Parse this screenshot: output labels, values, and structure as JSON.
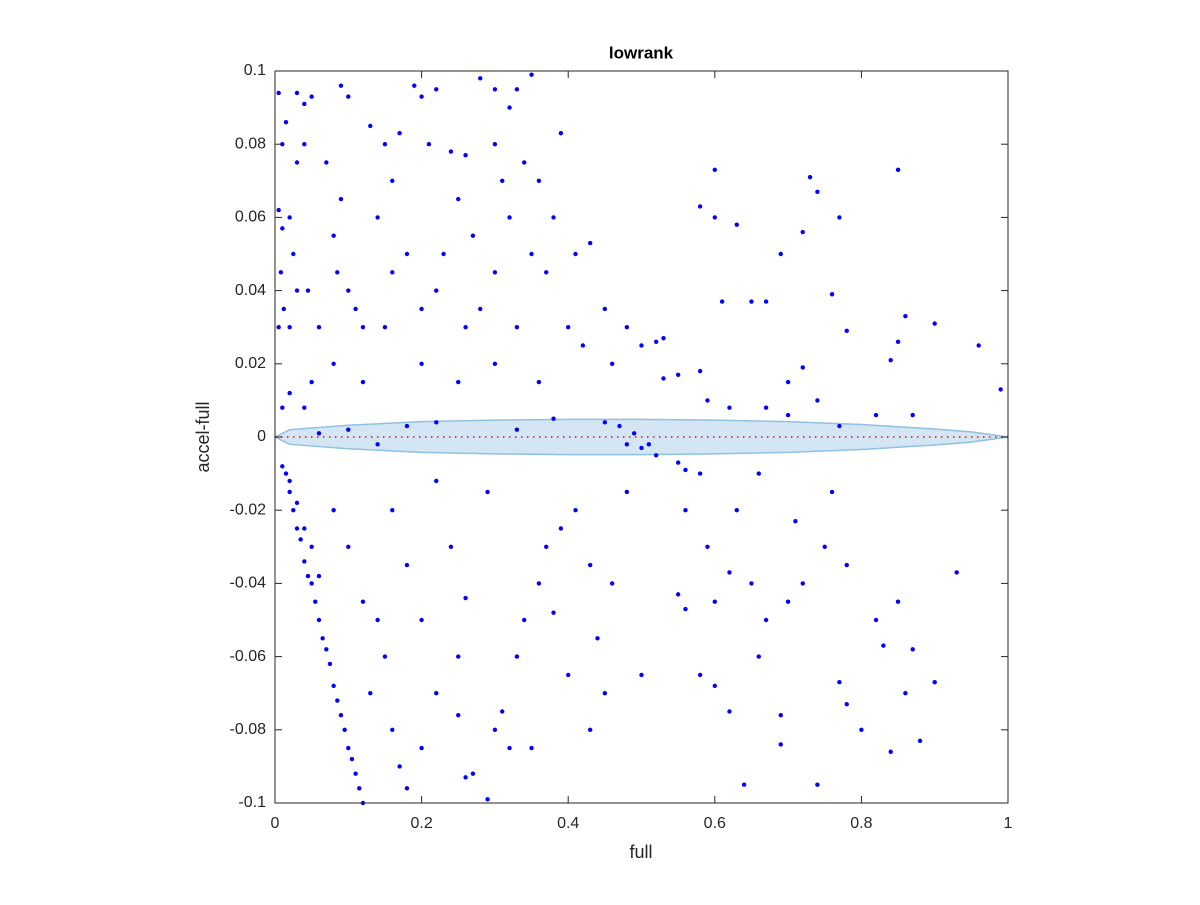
{
  "chart_data": {
    "type": "scatter",
    "title": "lowrank",
    "xlabel": "full",
    "ylabel": "accel-full",
    "xlim": [
      0,
      1
    ],
    "ylim": [
      -0.1,
      0.1
    ],
    "xticks": [
      0,
      0.2,
      0.4,
      0.6,
      0.8,
      1
    ],
    "yticks": [
      -0.1,
      -0.08,
      -0.06,
      -0.04,
      -0.02,
      0,
      0.02,
      0.04,
      0.06,
      0.08,
      0.1
    ],
    "grid": false,
    "color": "#0000ff",
    "x": [
      0.005,
      0.01,
      0.015,
      0.005,
      0.01,
      0.02,
      0.008,
      0.012,
      0.005,
      0.02,
      0.03,
      0.04,
      0.05,
      0.04,
      0.03,
      0.025,
      0.03,
      0.045,
      0.06,
      0.07,
      0.09,
      0.1,
      0.09,
      0.08,
      0.085,
      0.1,
      0.11,
      0.12,
      0.13,
      0.15,
      0.14,
      0.16,
      0.17,
      0.19,
      0.2,
      0.22,
      0.21,
      0.18,
      0.16,
      0.15,
      0.2,
      0.24,
      0.26,
      0.25,
      0.27,
      0.23,
      0.22,
      0.26,
      0.28,
      0.3,
      0.32,
      0.33,
      0.35,
      0.3,
      0.31,
      0.32,
      0.34,
      0.36,
      0.38,
      0.35,
      0.3,
      0.28,
      0.33,
      0.37,
      0.39,
      0.41,
      0.43,
      0.4,
      0.42,
      0.45,
      0.48,
      0.5,
      0.46,
      0.36,
      0.3,
      0.25,
      0.2,
      0.12,
      0.08,
      0.05,
      0.02,
      0.01,
      0.04,
      0.58,
      0.6,
      0.6,
      0.63,
      0.65,
      0.61,
      0.67,
      0.69,
      0.72,
      0.73,
      0.74,
      0.76,
      0.77,
      0.78,
      0.85,
      0.86,
      0.85,
      0.9,
      0.84,
      0.96,
      0.99,
      0.72,
      0.7,
      0.53,
      0.52,
      0.55,
      0.53,
      0.58,
      0.59,
      0.62,
      0.67,
      0.74,
      0.77,
      0.87,
      0.82,
      0.7,
      0.45,
      0.47,
      0.48,
      0.49,
      0.5,
      0.51,
      0.52,
      0.55,
      0.56,
      0.58,
      0.38,
      0.33,
      0.22,
      0.18,
      0.1,
      0.06,
      0.14,
      0.01,
      0.02,
      0.025,
      0.03,
      0.035,
      0.04,
      0.045,
      0.05,
      0.055,
      0.06,
      0.065,
      0.07,
      0.075,
      0.08,
      0.085,
      0.09,
      0.095,
      0.1,
      0.105,
      0.11,
      0.115,
      0.12,
      0.015,
      0.02,
      0.03,
      0.04,
      0.05,
      0.06,
      0.08,
      0.1,
      0.12,
      0.14,
      0.15,
      0.13,
      0.16,
      0.17,
      0.18,
      0.2,
      0.22,
      0.2,
      0.18,
      0.16,
      0.24,
      0.26,
      0.25,
      0.25,
      0.26,
      0.27,
      0.29,
      0.3,
      0.31,
      0.32,
      0.33,
      0.34,
      0.35,
      0.36,
      0.37,
      0.38,
      0.4,
      0.41,
      0.43,
      0.44,
      0.45,
      0.46,
      0.48,
      0.5,
      0.43,
      0.39,
      0.29,
      0.22,
      0.56,
      0.55,
      0.56,
      0.58,
      0.6,
      0.62,
      0.64,
      0.59,
      0.62,
      0.65,
      0.67,
      0.66,
      0.69,
      0.69,
      0.7,
      0.72,
      0.75,
      0.77,
      0.78,
      0.74,
      0.8,
      0.82,
      0.83,
      0.84,
      0.85,
      0.86,
      0.87,
      0.88,
      0.9,
      0.93,
      0.76,
      0.78,
      0.71,
      0.63,
      0.66,
      0.6
    ],
    "y": [
      0.094,
      0.08,
      0.086,
      0.062,
      0.057,
      0.06,
      0.045,
      0.035,
      0.03,
      0.03,
      0.094,
      0.091,
      0.093,
      0.08,
      0.075,
      0.05,
      0.04,
      0.04,
      0.03,
      0.075,
      0.096,
      0.093,
      0.065,
      0.055,
      0.045,
      0.04,
      0.035,
      0.03,
      0.085,
      0.08,
      0.06,
      0.07,
      0.083,
      0.096,
      0.093,
      0.095,
      0.08,
      0.05,
      0.045,
      0.03,
      0.035,
      0.078,
      0.077,
      0.065,
      0.055,
      0.05,
      0.04,
      0.03,
      0.098,
      0.095,
      0.09,
      0.095,
      0.099,
      0.08,
      0.07,
      0.06,
      0.075,
      0.07,
      0.06,
      0.05,
      0.045,
      0.035,
      0.03,
      0.045,
      0.083,
      0.05,
      0.053,
      0.03,
      0.025,
      0.035,
      0.03,
      0.025,
      0.02,
      0.015,
      0.02,
      0.015,
      0.02,
      0.015,
      0.02,
      0.015,
      0.012,
      0.008,
      0.008,
      0.063,
      0.073,
      0.06,
      0.058,
      0.037,
      0.037,
      0.037,
      0.05,
      0.056,
      0.071,
      0.067,
      0.039,
      0.06,
      0.029,
      0.073,
      0.033,
      0.026,
      0.031,
      0.021,
      0.025,
      0.013,
      0.019,
      0.015,
      0.027,
      0.026,
      0.017,
      0.016,
      0.018,
      0.01,
      0.008,
      0.008,
      0.01,
      0.003,
      0.006,
      0.006,
      0.006,
      0.004,
      0.003,
      -0.002,
      0.001,
      -0.003,
      -0.002,
      -0.005,
      -0.007,
      -0.009,
      -0.01,
      0.005,
      0.002,
      0.004,
      0.003,
      0.002,
      0.001,
      -0.002,
      -0.008,
      -0.015,
      -0.02,
      -0.025,
      -0.028,
      -0.034,
      -0.038,
      -0.04,
      -0.045,
      -0.05,
      -0.055,
      -0.058,
      -0.062,
      -0.068,
      -0.072,
      -0.076,
      -0.08,
      -0.085,
      -0.088,
      -0.092,
      -0.096,
      -0.1,
      -0.01,
      -0.012,
      -0.018,
      -0.025,
      -0.03,
      -0.038,
      -0.02,
      -0.03,
      -0.045,
      -0.05,
      -0.06,
      -0.07,
      -0.08,
      -0.09,
      -0.096,
      -0.085,
      -0.07,
      -0.05,
      -0.035,
      -0.02,
      -0.03,
      -0.044,
      -0.06,
      -0.076,
      -0.093,
      -0.092,
      -0.099,
      -0.08,
      -0.075,
      -0.085,
      -0.06,
      -0.05,
      -0.085,
      -0.04,
      -0.03,
      -0.048,
      -0.065,
      -0.02,
      -0.035,
      -0.055,
      -0.07,
      -0.04,
      -0.015,
      -0.065,
      -0.08,
      -0.025,
      -0.015,
      -0.012,
      -0.02,
      -0.043,
      -0.047,
      -0.065,
      -0.068,
      -0.075,
      -0.095,
      -0.03,
      -0.037,
      -0.04,
      -0.05,
      -0.06,
      -0.076,
      -0.084,
      -0.045,
      -0.04,
      -0.03,
      -0.067,
      -0.073,
      -0.095,
      -0.08,
      -0.05,
      -0.057,
      -0.086,
      -0.045,
      -0.07,
      -0.058,
      -0.083,
      -0.067,
      -0.037,
      -0.015,
      -0.035,
      -0.023,
      -0.02,
      -0.01,
      -0.045
    ],
    "band": {
      "fill": "#d4e6f4",
      "edge": "#8fc1e3",
      "x": [
        0,
        0.02,
        0.1,
        0.2,
        0.3,
        0.4,
        0.5,
        0.6,
        0.7,
        0.8,
        0.9,
        0.95,
        1
      ],
      "upper": [
        0,
        0.002,
        0.0032,
        0.0042,
        0.0046,
        0.0048,
        0.0048,
        0.0046,
        0.0042,
        0.0034,
        0.0022,
        0.0014,
        0
      ],
      "lower": [
        0,
        -0.002,
        -0.0032,
        -0.0042,
        -0.0046,
        -0.0048,
        -0.0048,
        -0.0046,
        -0.0042,
        -0.0034,
        -0.0022,
        -0.0014,
        0
      ]
    },
    "reference_line": {
      "color": "#ff0000",
      "x": [
        0,
        1
      ],
      "y": [
        0,
        0
      ]
    }
  }
}
